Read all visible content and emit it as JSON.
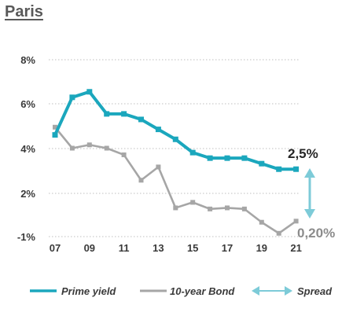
{
  "page": {
    "title": "Paris"
  },
  "colors": {
    "prime": "#1ba7bd",
    "bond": "#a6a6a6",
    "spread": "#7dcbd8",
    "grid": "#bfbfbf",
    "text": "#3a3a3a"
  },
  "chart_data": {
    "type": "line",
    "title": "Paris",
    "x": [
      "07",
      "08",
      "09",
      "10",
      "11",
      "12",
      "13",
      "14",
      "15",
      "16",
      "17",
      "18",
      "19",
      "20",
      "21"
    ],
    "x_tick_labels": [
      "07",
      "09",
      "11",
      "13",
      "15",
      "17",
      "19",
      "21"
    ],
    "y_tick_labels": [
      "8%",
      "6%",
      "4%",
      "2%",
      "-1%"
    ],
    "grid": "dotted horizontal",
    "legend_position": "bottom",
    "series": [
      {
        "name": "Prime yield",
        "color": "#1ba7bd",
        "values": [
          4.6,
          6.3,
          6.55,
          5.55,
          5.55,
          5.3,
          4.85,
          4.4,
          3.8,
          3.55,
          3.55,
          3.55,
          3.3,
          3.05,
          3.05
        ]
      },
      {
        "name": "10-year Bond",
        "color": "#a6a6a6",
        "values": [
          4.95,
          4.0,
          4.15,
          4.0,
          3.7,
          2.55,
          3.15,
          1.3,
          1.55,
          1.25,
          1.3,
          1.25,
          0.65,
          0.15,
          0.7
        ]
      }
    ],
    "spread": {
      "name": "Spread",
      "top_label": "2,5%",
      "bottom_label": "0,20%"
    }
  }
}
